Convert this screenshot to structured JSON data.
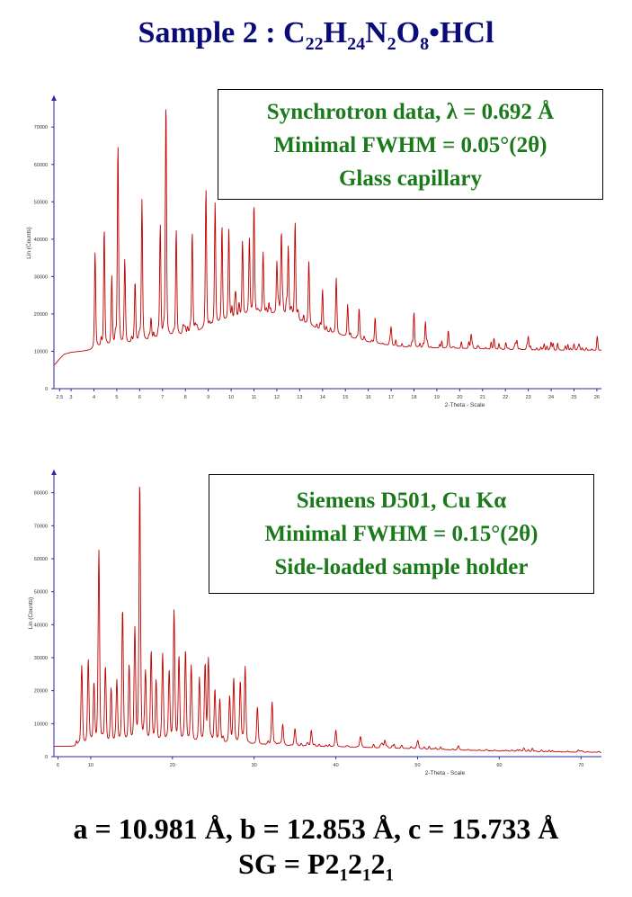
{
  "header": {
    "title_prefix": "Sample 2 : C",
    "f1": "22",
    "h": "H",
    "f2": "24",
    "n": "N",
    "f3": "2",
    "o": "O",
    "f4": "8",
    "bullet": "•",
    "suffix": "HCl"
  },
  "colors": {
    "title": "#0a0a78",
    "box_text": "#1a7a1a",
    "trace": "#c00000",
    "axis": "#2a2aa0"
  },
  "chart_data": [
    {
      "type": "line",
      "title": "",
      "xlabel": "2-Theta - Scale",
      "ylabel": "Lin (Counts)",
      "xlim": [
        2.25,
        26.2
      ],
      "ylim": [
        0,
        78000
      ],
      "x_ticks": [
        2.5,
        3,
        4,
        5,
        6,
        7,
        8,
        9,
        10,
        11,
        12,
        13,
        14,
        15,
        16,
        17,
        18,
        19,
        20,
        21,
        22,
        23,
        24,
        25,
        26
      ],
      "y_ticks": [
        0,
        10000,
        20000,
        30000,
        40000,
        50000,
        60000,
        70000
      ],
      "baseline": [
        [
          2.3,
          6500
        ],
        [
          2.5,
          8000
        ],
        [
          2.7,
          9200
        ],
        [
          3.0,
          9700
        ],
        [
          3.5,
          10000
        ],
        [
          3.95,
          10300
        ],
        [
          4.1,
          11000
        ],
        [
          5,
          11500
        ],
        [
          6,
          12500
        ],
        [
          7,
          13500
        ],
        [
          8,
          14500
        ],
        [
          9,
          16000
        ],
        [
          10,
          18500
        ],
        [
          11,
          20000
        ],
        [
          12,
          20000
        ],
        [
          12.6,
          19500
        ],
        [
          13,
          18000
        ],
        [
          14,
          15500
        ],
        [
          15,
          14000
        ],
        [
          16,
          12500
        ],
        [
          17,
          11500
        ],
        [
          18,
          11000
        ],
        [
          20,
          10800
        ],
        [
          22,
          10500
        ],
        [
          24,
          10300
        ],
        [
          26.2,
          10300
        ]
      ],
      "peaks": [
        [
          4.05,
          36500
        ],
        [
          4.45,
          42000
        ],
        [
          4.78,
          29000
        ],
        [
          5.05,
          65500
        ],
        [
          5.35,
          34000
        ],
        [
          5.8,
          28500
        ],
        [
          6.1,
          50500
        ],
        [
          6.5,
          18000
        ],
        [
          6.9,
          43500
        ],
        [
          7.15,
          74500
        ],
        [
          7.6,
          42500
        ],
        [
          8.3,
          42000
        ],
        [
          8.9,
          53500
        ],
        [
          9.3,
          49500
        ],
        [
          9.6,
          40000
        ],
        [
          9.9,
          42500
        ],
        [
          10.2,
          25500
        ],
        [
          10.5,
          39500
        ],
        [
          10.8,
          40000
        ],
        [
          11.0,
          47500
        ],
        [
          11.4,
          36500
        ],
        [
          12.0,
          30000
        ],
        [
          12.2,
          41500
        ],
        [
          12.5,
          38000
        ],
        [
          12.8,
          43500
        ],
        [
          13.4,
          34000
        ],
        [
          14.0,
          26500
        ],
        [
          14.6,
          29500
        ],
        [
          15.1,
          22500
        ],
        [
          15.6,
          21500
        ],
        [
          16.3,
          19000
        ],
        [
          17.0,
          16500
        ],
        [
          18.0,
          20500
        ],
        [
          18.5,
          17000
        ],
        [
          19.5,
          15500
        ],
        [
          20.5,
          14500
        ],
        [
          21.5,
          13500
        ],
        [
          22.5,
          13000
        ],
        [
          23.0,
          14000
        ],
        [
          24.0,
          12500
        ],
        [
          25.0,
          12000
        ]
      ]
    },
    {
      "type": "line",
      "title": "",
      "xlabel": "2-Theta - Scale",
      "ylabel": "Lin (Counts)",
      "xlim": [
        5.5,
        72.5
      ],
      "ylim": [
        0,
        87000
      ],
      "x_ticks": [
        6,
        10,
        20,
        30,
        40,
        50,
        60,
        70
      ],
      "y_ticks": [
        0,
        10000,
        20000,
        30000,
        40000,
        50000,
        60000,
        70000,
        80000
      ],
      "baseline": [
        [
          5.6,
          3100
        ],
        [
          8,
          3000
        ],
        [
          12,
          3500
        ],
        [
          20,
          4200
        ],
        [
          25,
          4000
        ],
        [
          30,
          3600
        ],
        [
          35,
          3200
        ],
        [
          40,
          3000
        ],
        [
          45,
          2700
        ],
        [
          50,
          2400
        ],
        [
          55,
          2000
        ],
        [
          60,
          1700
        ],
        [
          65,
          1500
        ],
        [
          72.5,
          1300
        ]
      ],
      "peaks": [
        [
          8.9,
          27000
        ],
        [
          9.7,
          29000
        ],
        [
          10.4,
          21500
        ],
        [
          11.0,
          61500
        ],
        [
          11.8,
          26500
        ],
        [
          12.5,
          20000
        ],
        [
          13.2,
          22500
        ],
        [
          13.9,
          44500
        ],
        [
          14.7,
          26500
        ],
        [
          15.4,
          37500
        ],
        [
          16.0,
          82500
        ],
        [
          16.7,
          24500
        ],
        [
          17.4,
          31500
        ],
        [
          18.0,
          21500
        ],
        [
          18.8,
          30500
        ],
        [
          19.6,
          25500
        ],
        [
          20.2,
          43500
        ],
        [
          20.8,
          29500
        ],
        [
          21.6,
          31500
        ],
        [
          22.3,
          27000
        ],
        [
          23.3,
          23500
        ],
        [
          24.0,
          27500
        ],
        [
          24.4,
          29000
        ],
        [
          25.2,
          20000
        ],
        [
          25.8,
          17000
        ],
        [
          27.0,
          18000
        ],
        [
          27.5,
          23000
        ],
        [
          28.3,
          22000
        ],
        [
          28.9,
          27000
        ],
        [
          30.4,
          15000
        ],
        [
          32.2,
          16500
        ],
        [
          33.5,
          9500
        ],
        [
          35.0,
          8500
        ],
        [
          37.0,
          8000
        ],
        [
          40.0,
          8000
        ],
        [
          43.0,
          6000
        ],
        [
          46.0,
          5000
        ],
        [
          50.0,
          4500
        ],
        [
          55.0,
          3200
        ],
        [
          63.0,
          2600
        ]
      ]
    }
  ],
  "box1": {
    "line1": "Synchrotron data, λ = 0.692 Å",
    "line2": "Minimal FWHM = 0.05°(2θ)",
    "line3": "Glass capillary"
  },
  "box2": {
    "line1": "Siemens D501, Cu Kα",
    "line2": "Minimal FWHM = 0.15°(2θ)",
    "line3": "Side-loaded sample holder"
  },
  "cell": {
    "text": "a = 10.981 Å, b = 12.853 Å, c = 15.733 Å"
  },
  "sg": {
    "prefix": "SG = P2",
    "s1": "1",
    "mid1": "2",
    "s2": "1",
    "mid2": "2",
    "s3": "1"
  }
}
